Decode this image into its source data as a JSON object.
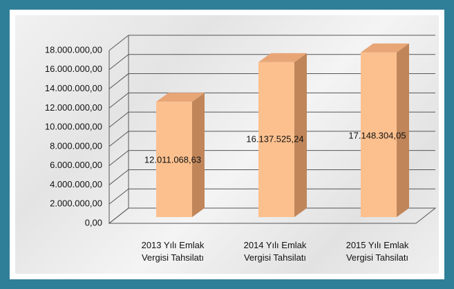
{
  "chart_data": {
    "type": "bar3d",
    "categories": [
      "2013 Yılı Emlak Vergisi Tahsilatı",
      "2014 Yılı Emlak Vergisi Tahsilatı",
      "2015 Yılı Emlak Vergisi Tahsilatı"
    ],
    "values": [
      12011068.63,
      16137525.24,
      17148304.05
    ],
    "value_labels": [
      "12.011.068,63",
      "16.137.525,24",
      "17.148.304,05"
    ],
    "color": "#fcc08e",
    "ylim": [
      0,
      18000000
    ],
    "yticks": [
      {
        "value": 0,
        "label": "0,00"
      },
      {
        "value": 2000000,
        "label": "2.000.000,00"
      },
      {
        "value": 4000000,
        "label": "4.000.000,00"
      },
      {
        "value": 6000000,
        "label": "6.000.000,00"
      },
      {
        "value": 8000000,
        "label": "8.000.000,00"
      },
      {
        "value": 10000000,
        "label": "10.000.000,00"
      },
      {
        "value": 12000000,
        "label": "12.000.000,00"
      },
      {
        "value": 14000000,
        "label": "14.000.000,00"
      },
      {
        "value": 16000000,
        "label": "16.000.000,00"
      },
      {
        "value": 18000000,
        "label": "18.000.000,00"
      }
    ],
    "grid": true
  }
}
